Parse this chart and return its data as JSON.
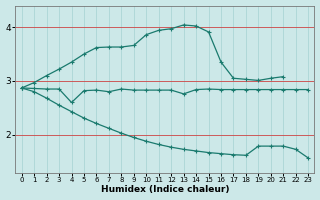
{
  "xlabel": "Humidex (Indice chaleur)",
  "x_ticks": [
    0,
    1,
    2,
    3,
    4,
    5,
    6,
    7,
    8,
    9,
    10,
    11,
    12,
    13,
    14,
    15,
    16,
    17,
    18,
    19,
    20,
    21,
    22,
    23
  ],
  "xlim": [
    -0.5,
    23.5
  ],
  "ylim": [
    1.3,
    4.4
  ],
  "y_ticks": [
    2,
    3,
    4
  ],
  "bg_color": "#cce8e8",
  "line_color": "#1a7a6e",
  "grid_color": "#b0d8d8",
  "red_line_color": "#cc4444",
  "series1_x": [
    0,
    1,
    2,
    3,
    4,
    5,
    6,
    7,
    8,
    9,
    10,
    11,
    12,
    13,
    14,
    15,
    16,
    17,
    18,
    19,
    20,
    21
  ],
  "series1_y": [
    2.87,
    2.97,
    3.1,
    3.22,
    3.35,
    3.5,
    3.62,
    3.63,
    3.63,
    3.66,
    3.86,
    3.94,
    3.97,
    4.04,
    4.02,
    3.91,
    3.35,
    3.05,
    3.03,
    3.01,
    3.05,
    3.08
  ],
  "series2_x": [
    0,
    1,
    2,
    3,
    4,
    5,
    6,
    7,
    8,
    9,
    10,
    11,
    12,
    13,
    14,
    15,
    16,
    17,
    18,
    19,
    20,
    21,
    22,
    23
  ],
  "series2_y": [
    2.87,
    2.86,
    2.85,
    2.85,
    2.6,
    2.82,
    2.83,
    2.8,
    2.85,
    2.83,
    2.83,
    2.83,
    2.83,
    2.76,
    2.84,
    2.85,
    2.84,
    2.84,
    2.84,
    2.84,
    2.84,
    2.84,
    2.84,
    2.84
  ],
  "series3_x": [
    0,
    1,
    2,
    3,
    4,
    5,
    6,
    7,
    8,
    9,
    10,
    11,
    12,
    13,
    14,
    15,
    16,
    17,
    18,
    19,
    20,
    21,
    22,
    23
  ],
  "series3_y": [
    2.87,
    2.8,
    2.68,
    2.55,
    2.43,
    2.31,
    2.21,
    2.12,
    2.03,
    1.95,
    1.88,
    1.82,
    1.77,
    1.73,
    1.7,
    1.67,
    1.65,
    1.63,
    1.62,
    1.79,
    1.79,
    1.79,
    1.73,
    1.57
  ]
}
